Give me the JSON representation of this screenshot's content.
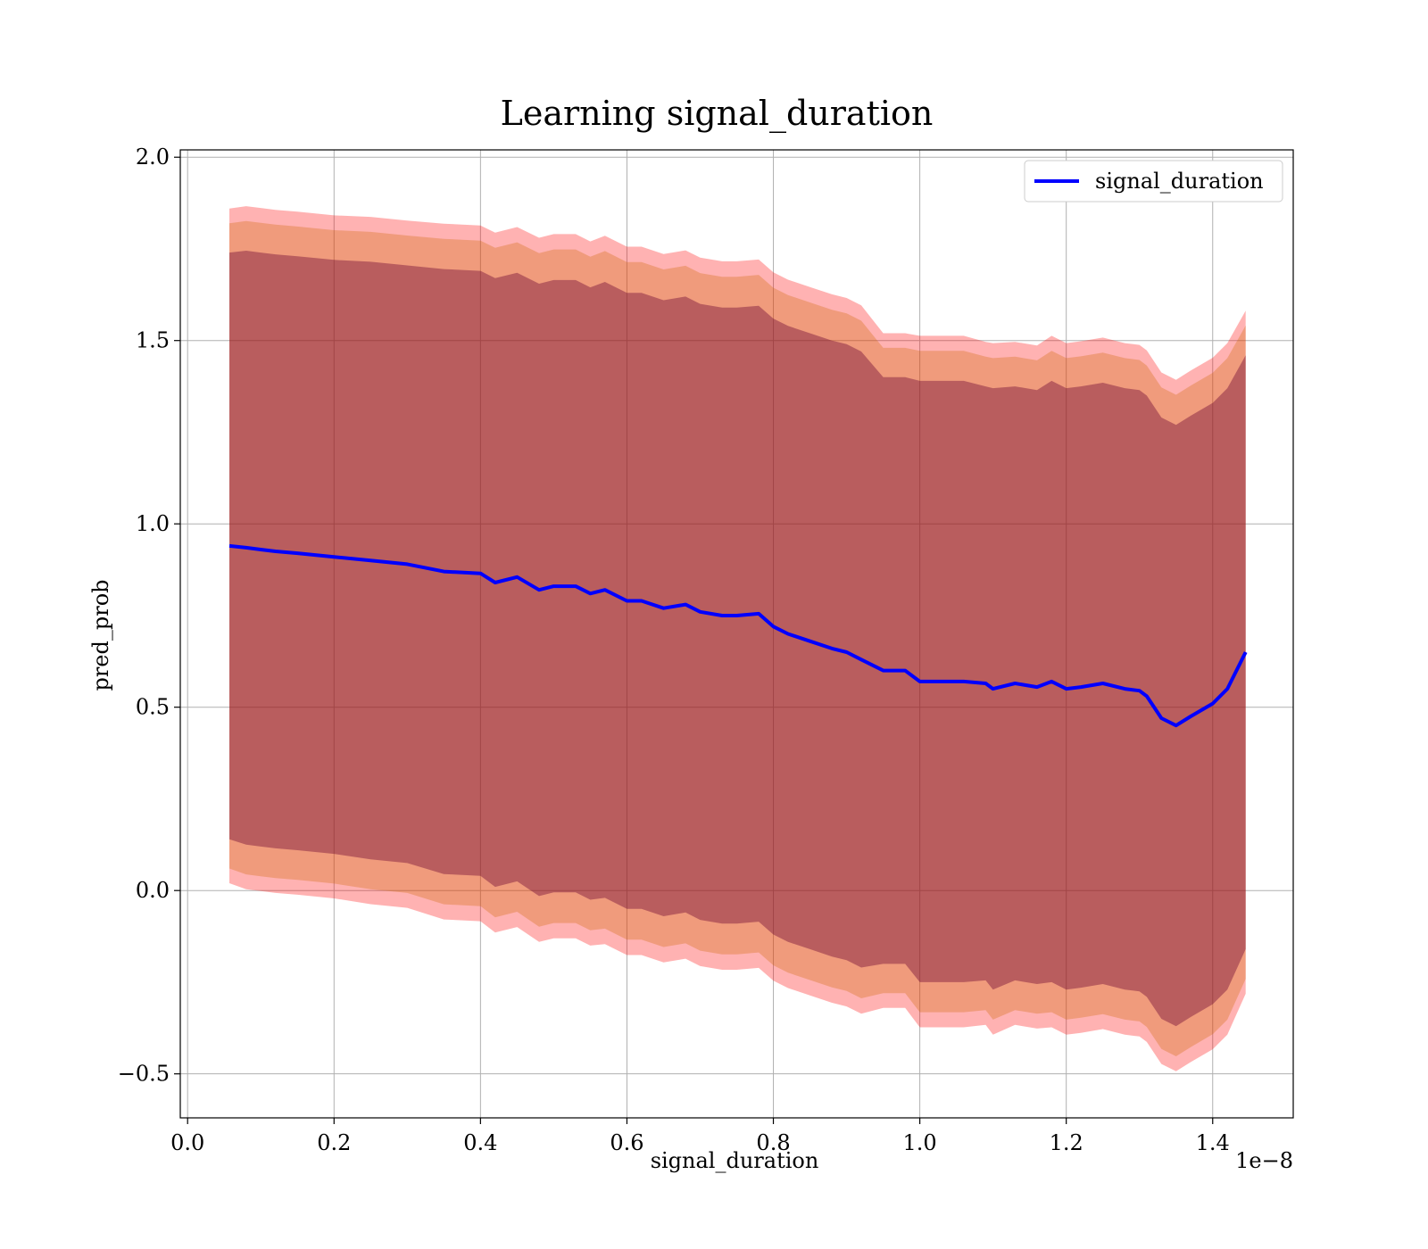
{
  "chart_data": {
    "type": "area",
    "title": "Learning signal_duration",
    "xlabel": "signal_duration",
    "ylabel": "pred_prob",
    "x_offset_label": "1e−8",
    "xlim": [
      -0.01,
      1.51
    ],
    "ylim": [
      -0.62,
      2.02
    ],
    "x_ticks": [
      0.0,
      0.2,
      0.4,
      0.6,
      0.8,
      1.0,
      1.2,
      1.4
    ],
    "x_tick_labels": [
      "0.0",
      "0.2",
      "0.4",
      "0.6",
      "0.8",
      "1.0",
      "1.2",
      "1.4"
    ],
    "y_ticks": [
      -0.5,
      0.0,
      0.5,
      1.0,
      1.5,
      2.0
    ],
    "y_tick_labels": [
      "−0.5",
      "0.0",
      "0.5",
      "1.0",
      "1.5",
      "2.0"
    ],
    "grid": true,
    "legend": {
      "position": "top-right",
      "entries": [
        "signal_duration"
      ]
    },
    "colors": {
      "line": "#0000ff",
      "band_outer": "#ff0000",
      "band_middle": "#cc6600",
      "band_inner": "#660033"
    },
    "series": [
      {
        "name": "signal_duration",
        "x": [
          0.057,
          0.08,
          0.1,
          0.12,
          0.15,
          0.2,
          0.25,
          0.3,
          0.35,
          0.4,
          0.42,
          0.45,
          0.48,
          0.5,
          0.53,
          0.55,
          0.57,
          0.6,
          0.62,
          0.65,
          0.68,
          0.7,
          0.73,
          0.75,
          0.78,
          0.8,
          0.82,
          0.85,
          0.88,
          0.9,
          0.92,
          0.95,
          0.98,
          1.0,
          1.03,
          1.06,
          1.09,
          1.1,
          1.13,
          1.16,
          1.18,
          1.2,
          1.22,
          1.25,
          1.28,
          1.3,
          1.31,
          1.33,
          1.35,
          1.37,
          1.4,
          1.42,
          1.445
        ],
        "y": [
          0.94,
          0.935,
          0.93,
          0.925,
          0.92,
          0.91,
          0.9,
          0.89,
          0.87,
          0.865,
          0.84,
          0.855,
          0.82,
          0.83,
          0.83,
          0.81,
          0.82,
          0.79,
          0.79,
          0.77,
          0.78,
          0.76,
          0.75,
          0.75,
          0.755,
          0.72,
          0.7,
          0.68,
          0.66,
          0.65,
          0.63,
          0.6,
          0.6,
          0.57,
          0.57,
          0.57,
          0.565,
          0.55,
          0.565,
          0.555,
          0.57,
          0.55,
          0.555,
          0.565,
          0.55,
          0.545,
          0.53,
          0.47,
          0.45,
          0.475,
          0.51,
          0.55,
          0.65
        ],
        "std": [
          0.8,
          0.81,
          0.81,
          0.81,
          0.81,
          0.81,
          0.815,
          0.815,
          0.825,
          0.825,
          0.83,
          0.83,
          0.835,
          0.835,
          0.835,
          0.835,
          0.84,
          0.84,
          0.84,
          0.84,
          0.84,
          0.84,
          0.84,
          0.84,
          0.84,
          0.84,
          0.84,
          0.84,
          0.84,
          0.84,
          0.84,
          0.8,
          0.8,
          0.82,
          0.82,
          0.82,
          0.81,
          0.82,
          0.81,
          0.81,
          0.82,
          0.82,
          0.82,
          0.82,
          0.82,
          0.82,
          0.82,
          0.82,
          0.82,
          0.82,
          0.82,
          0.82,
          0.81
        ]
      }
    ],
    "bands": [
      {
        "name": "outer",
        "std_multiplier": 1.15
      },
      {
        "name": "middle",
        "std_multiplier": 1.1
      },
      {
        "name": "inner",
        "std_multiplier": 1.0
      }
    ]
  }
}
